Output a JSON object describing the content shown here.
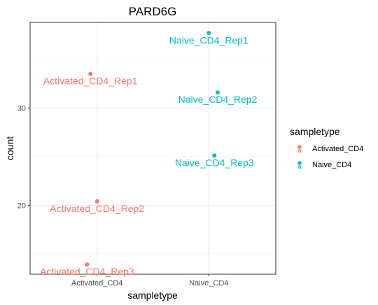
{
  "chart_data": {
    "type": "scatter",
    "title": "PARD6G",
    "xlabel": "sampletype",
    "ylabel": "count",
    "categories": [
      "Activated_CD4",
      "Naive_CD4"
    ],
    "yticks": [
      20,
      30
    ],
    "ylim": [
      12.9,
      38.8
    ],
    "grid": true,
    "legend": {
      "title": "sampletype",
      "placement": "right",
      "entries": [
        {
          "name": "Activated_CD4",
          "color": "#F8766D"
        },
        {
          "name": "Naive_CD4",
          "color": "#00BFC4"
        }
      ]
    },
    "points": [
      {
        "category": "Activated_CD4",
        "y": 33.5,
        "label": "Activated_CD4_Rep1",
        "color": "#F8766D",
        "jitter": -0.06
      },
      {
        "category": "Activated_CD4",
        "y": 20.4,
        "label": "Activated_CD4_Rep2",
        "color": "#F8766D",
        "jitter": 0.0
      },
      {
        "category": "Activated_CD4",
        "y": 13.9,
        "label": "Activated_CD4_Rep3",
        "color": "#F8766D",
        "jitter": -0.09
      },
      {
        "category": "Naive_CD4",
        "y": 37.7,
        "label": "Naive_CD4_Rep1",
        "color": "#00BFC4",
        "jitter": 0.0
      },
      {
        "category": "Naive_CD4",
        "y": 31.6,
        "label": "Naive_CD4_Rep2",
        "color": "#00BFC4",
        "jitter": 0.08
      },
      {
        "category": "Naive_CD4",
        "y": 25.1,
        "label": "Naive_CD4_Rep3",
        "color": "#00BFC4",
        "jitter": 0.05
      }
    ]
  }
}
